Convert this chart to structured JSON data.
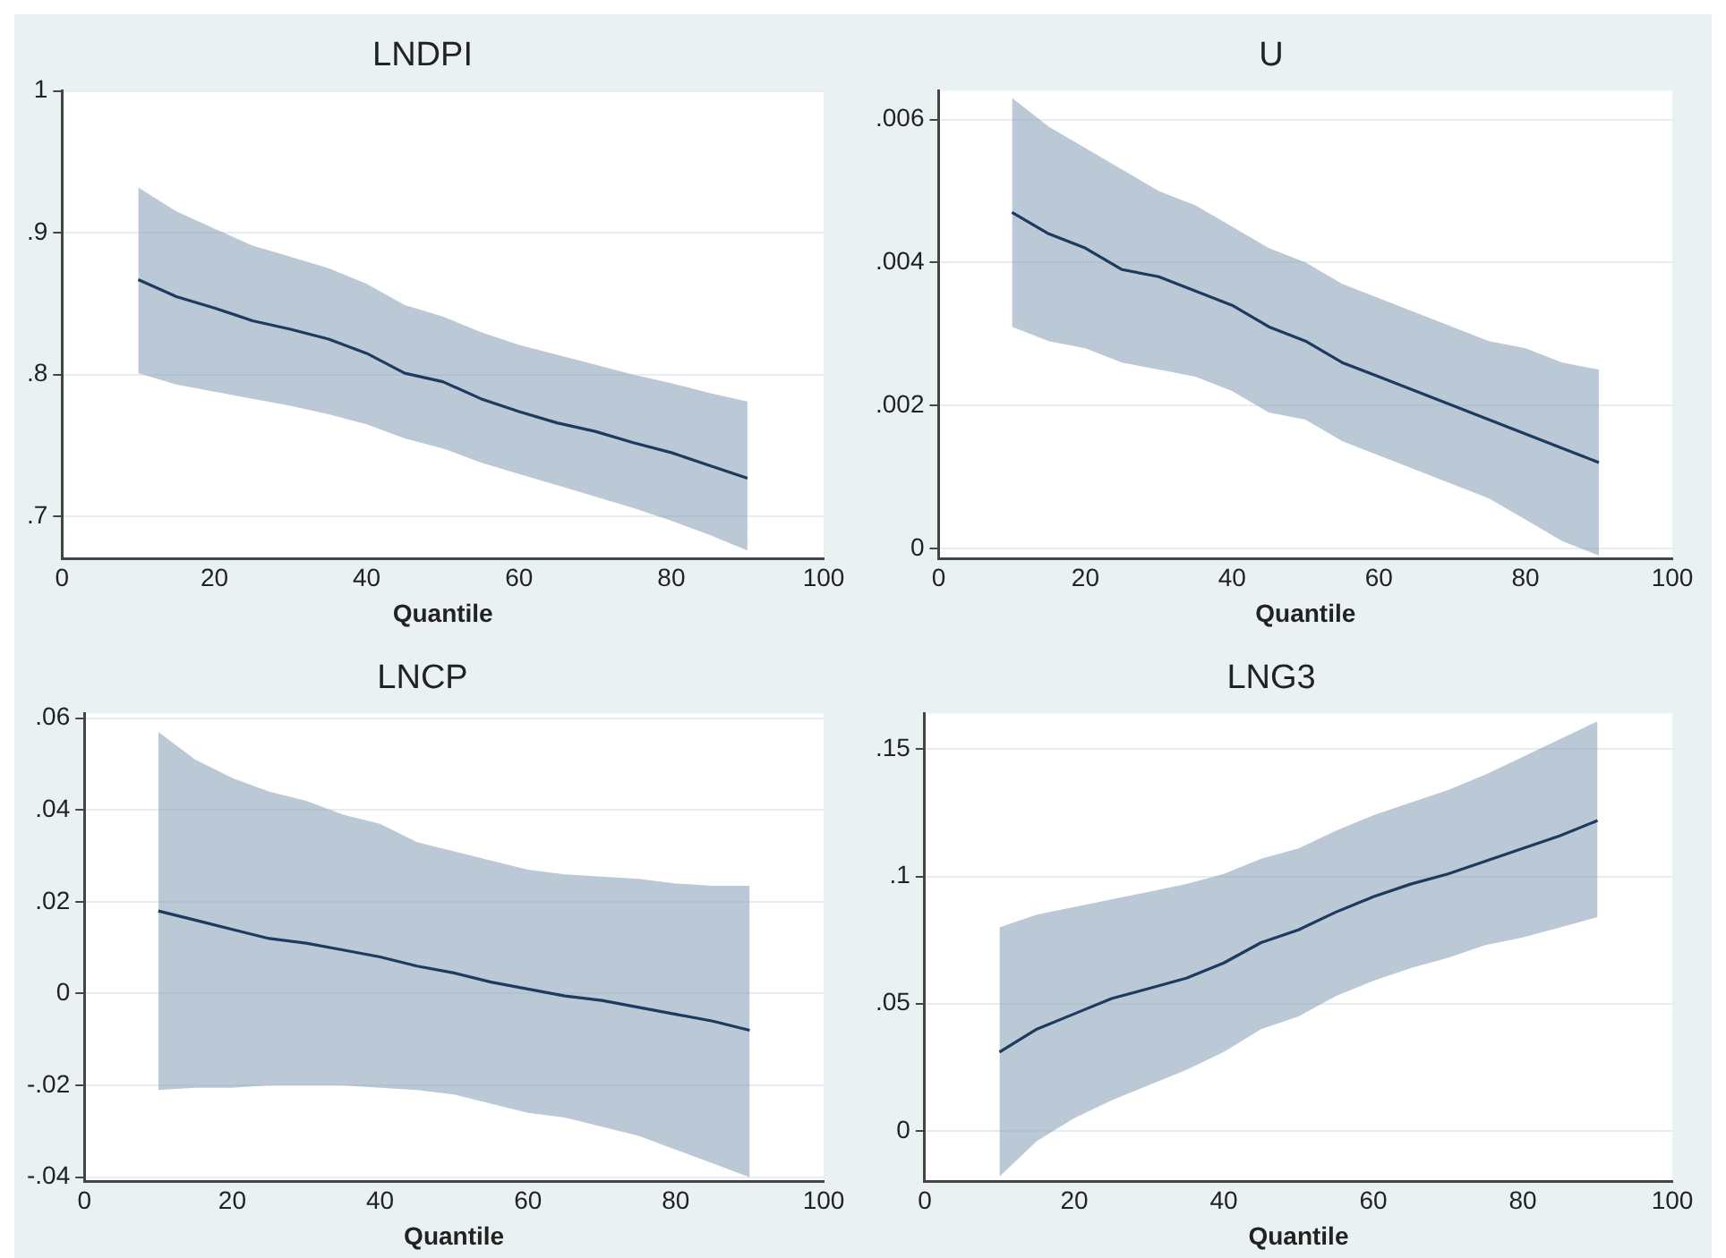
{
  "chart_data": [
    {
      "type": "line",
      "title": "LNDPI",
      "xlabel": "Quantile",
      "x": [
        10,
        15,
        20,
        25,
        30,
        35,
        40,
        45,
        50,
        55,
        60,
        65,
        70,
        75,
        80,
        85,
        90
      ],
      "xlim": [
        0,
        100
      ],
      "xticks": [
        0,
        20,
        40,
        60,
        80,
        100
      ],
      "ylim": [
        0.67,
        1.0
      ],
      "yticks": [
        {
          "value": 0.7,
          "label": ".7"
        },
        {
          "value": 0.8,
          "label": ".8"
        },
        {
          "value": 0.9,
          "label": ".9"
        },
        {
          "value": 1,
          "label": "1"
        }
      ],
      "grid": "y",
      "series": [
        {
          "color": "#1c3b5e",
          "values": [
            0.867,
            0.855,
            0.847,
            0.838,
            0.832,
            0.825,
            0.815,
            0.801,
            0.795,
            0.783,
            0.774,
            0.766,
            0.76,
            0.752,
            0.745,
            0.736,
            0.727
          ],
          "lower": [
            0.801,
            0.793,
            0.788,
            0.783,
            0.778,
            0.772,
            0.765,
            0.755,
            0.748,
            0.738,
            0.73,
            0.722,
            0.714,
            0.706,
            0.697,
            0.687,
            0.676
          ],
          "upper": [
            0.932,
            0.915,
            0.903,
            0.891,
            0.883,
            0.875,
            0.864,
            0.849,
            0.841,
            0.83,
            0.821,
            0.814,
            0.807,
            0.8,
            0.794,
            0.787,
            0.781
          ]
        }
      ]
    },
    {
      "type": "line",
      "title": "U",
      "xlabel": "Quantile",
      "x": [
        10,
        15,
        20,
        25,
        30,
        35,
        40,
        45,
        50,
        55,
        60,
        65,
        70,
        75,
        80,
        85,
        90
      ],
      "xlim": [
        0,
        100
      ],
      "xticks": [
        0,
        20,
        40,
        60,
        80,
        100
      ],
      "ylim": [
        -0.00015,
        0.0064
      ],
      "yticks": [
        {
          "value": 0,
          "label": "0"
        },
        {
          "value": 0.002,
          "label": ".002"
        },
        {
          "value": 0.004,
          "label": ".004"
        },
        {
          "value": 0.006,
          "label": ".006"
        }
      ],
      "grid": "y",
      "series": [
        {
          "color": "#1c3b5e",
          "values": [
            0.0047,
            0.0044,
            0.0042,
            0.0039,
            0.0038,
            0.0036,
            0.0034,
            0.0031,
            0.0029,
            0.0026,
            0.0024,
            0.0022,
            0.002,
            0.0018,
            0.0016,
            0.0014,
            0.0012
          ],
          "lower": [
            0.0031,
            0.0029,
            0.0028,
            0.0026,
            0.0025,
            0.0024,
            0.0022,
            0.0019,
            0.0018,
            0.0015,
            0.0013,
            0.0011,
            0.0009,
            0.0007,
            0.0004,
            0.0001,
            -0.0001
          ],
          "upper": [
            0.0063,
            0.0059,
            0.0056,
            0.0053,
            0.005,
            0.0048,
            0.0045,
            0.0042,
            0.004,
            0.0037,
            0.0035,
            0.0033,
            0.0031,
            0.0029,
            0.0028,
            0.0026,
            0.0025
          ]
        }
      ]
    },
    {
      "type": "line",
      "title": "LNCP",
      "xlabel": "Quantile",
      "x": [
        10,
        15,
        20,
        25,
        30,
        35,
        40,
        45,
        50,
        55,
        60,
        65,
        70,
        75,
        80,
        85,
        90
      ],
      "xlim": [
        0,
        100
      ],
      "xticks": [
        0,
        20,
        40,
        60,
        80,
        100
      ],
      "ylim": [
        -0.041,
        0.061
      ],
      "yticks": [
        {
          "value": -0.04,
          "label": "-.04"
        },
        {
          "value": -0.02,
          "label": "-.02"
        },
        {
          "value": 0,
          "label": "0"
        },
        {
          "value": 0.02,
          "label": ".02"
        },
        {
          "value": 0.04,
          "label": ".04"
        },
        {
          "value": 0.06,
          "label": ".06"
        }
      ],
      "grid": "y",
      "series": [
        {
          "color": "#1c3b5e",
          "values": [
            0.018,
            0.016,
            0.014,
            0.012,
            0.011,
            0.0095,
            0.008,
            0.006,
            0.0045,
            0.0025,
            0.001,
            -0.0005,
            -0.0015,
            -0.003,
            -0.0045,
            -0.006,
            -0.008
          ],
          "lower": [
            -0.021,
            -0.0205,
            -0.0205,
            -0.02,
            -0.02,
            -0.02,
            -0.0205,
            -0.021,
            -0.022,
            -0.024,
            -0.026,
            -0.027,
            -0.029,
            -0.031,
            -0.034,
            -0.037,
            -0.04
          ],
          "upper": [
            0.057,
            0.051,
            0.047,
            0.044,
            0.042,
            0.039,
            0.037,
            0.033,
            0.031,
            0.029,
            0.027,
            0.026,
            0.0255,
            0.025,
            0.024,
            0.0235,
            0.0235
          ]
        }
      ]
    },
    {
      "type": "line",
      "title": "LNG3",
      "xlabel": "Quantile",
      "x": [
        10,
        15,
        20,
        25,
        30,
        35,
        40,
        45,
        50,
        55,
        60,
        65,
        70,
        75,
        80,
        85,
        90
      ],
      "xlim": [
        0,
        100
      ],
      "xticks": [
        0,
        20,
        40,
        60,
        80,
        100
      ],
      "ylim": [
        -0.02,
        0.164
      ],
      "yticks": [
        {
          "value": 0,
          "label": "0"
        },
        {
          "value": 0.05,
          "label": ".05"
        },
        {
          "value": 0.1,
          "label": ".1"
        },
        {
          "value": 0.15,
          "label": ".15"
        }
      ],
      "grid": "y",
      "series": [
        {
          "color": "#1c3b5e",
          "values": [
            0.031,
            0.04,
            0.046,
            0.052,
            0.056,
            0.06,
            0.066,
            0.074,
            0.079,
            0.086,
            0.092,
            0.097,
            0.101,
            0.106,
            0.111,
            0.116,
            0.122
          ],
          "lower": [
            -0.018,
            -0.004,
            0.005,
            0.012,
            0.018,
            0.024,
            0.031,
            0.04,
            0.045,
            0.053,
            0.059,
            0.064,
            0.068,
            0.073,
            0.076,
            0.08,
            0.084
          ],
          "upper": [
            0.08,
            0.085,
            0.088,
            0.091,
            0.094,
            0.097,
            0.101,
            0.107,
            0.111,
            0.118,
            0.124,
            0.129,
            0.134,
            0.14,
            0.147,
            0.154,
            0.161
          ]
        }
      ]
    }
  ]
}
